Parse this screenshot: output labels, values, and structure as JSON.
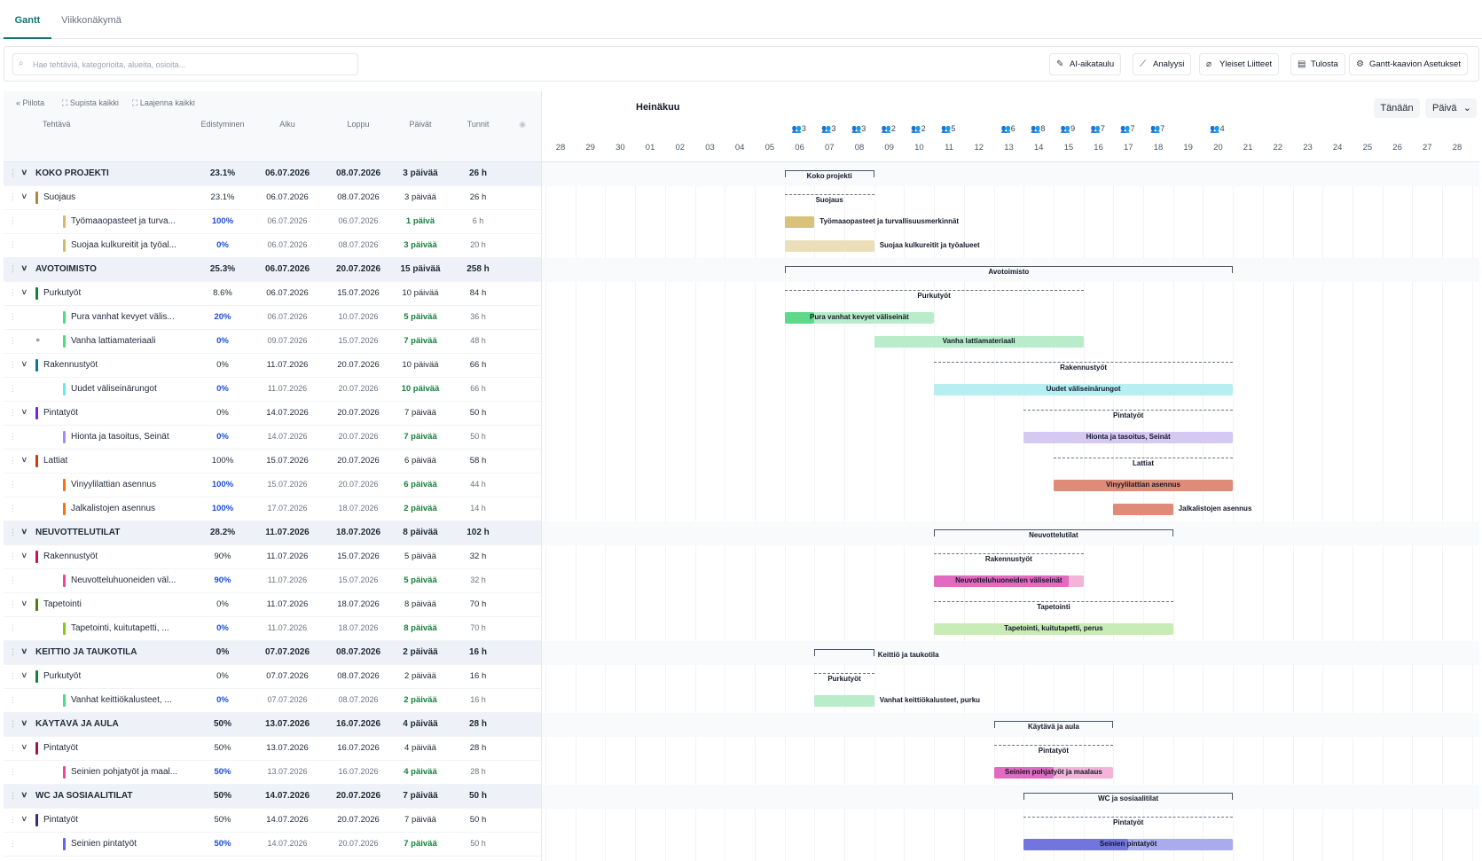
{
  "tabs": [
    {
      "label": "Gantt",
      "active": true
    },
    {
      "label": "Viikkonäkymä",
      "active": false
    }
  ],
  "search": {
    "placeholder": "Hae tehtäviä, kategorioita, alueita, osioita..."
  },
  "toolbar": {
    "ai_schedule": "AI-aikataulu",
    "analysis": "Analyysi",
    "attachments": "Yleiset Liitteet",
    "print": "Tulosta",
    "settings": "Gantt-kaavion Asetukset"
  },
  "left_actions": {
    "hide": "Piilota",
    "collapse": "Supista kaikki",
    "expand": "Laajenna kaikki"
  },
  "columns": {
    "task": "Tehtävä",
    "progress": "Edistyminen",
    "start": "Alku",
    "end": "Loppu",
    "days": "Päivät",
    "hours": "Tunnit"
  },
  "timeline": {
    "month": "Heinäkuu",
    "today": "Tänään",
    "scale": "Päivä",
    "days": [
      "28",
      "29",
      "30",
      "01",
      "02",
      "03",
      "04",
      "05",
      "06",
      "07",
      "08",
      "09",
      "10",
      "11",
      "12",
      "13",
      "14",
      "15",
      "16",
      "17",
      "18",
      "19",
      "20",
      "21",
      "22",
      "23",
      "24",
      "25",
      "26",
      "27",
      "28"
    ],
    "workload": [
      {
        "day": 8,
        "count": "3"
      },
      {
        "day": 9,
        "count": "3"
      },
      {
        "day": 10,
        "count": "3"
      },
      {
        "day": 11,
        "count": "2"
      },
      {
        "day": 12,
        "count": "2"
      },
      {
        "day": 13,
        "count": "5"
      },
      {
        "day": 15,
        "count": "6"
      },
      {
        "day": 16,
        "count": "8"
      },
      {
        "day": 17,
        "count": "9"
      },
      {
        "day": 18,
        "count": "7"
      },
      {
        "day": 19,
        "count": "7"
      },
      {
        "day": 20,
        "count": "7"
      },
      {
        "day": 22,
        "count": "4"
      }
    ]
  },
  "colors": {
    "accent": "#0f766e",
    "top_band": "#eef2f8"
  },
  "rows": [
    {
      "kind": "top",
      "name": "KOKO PROJEKTI",
      "progress": "23.1%",
      "start": "06.07.2026",
      "end": "08.07.2026",
      "days": "3 päivää",
      "hours": "26 h",
      "gantt": {
        "type": "bracket",
        "s": 8,
        "e": 10,
        "label": "Koko projekti",
        "out": false
      }
    },
    {
      "kind": "sub",
      "name": "Suojaus",
      "color": "#a78b3c",
      "progress": "23.1%",
      "start": "06.07.2026",
      "end": "08.07.2026",
      "days": "3 päivää",
      "hours": "26 h",
      "gantt": {
        "type": "dash",
        "s": 8,
        "e": 10,
        "label": "Suojaus",
        "out": false
      }
    },
    {
      "kind": "task",
      "name": "Työmaaopasteet ja turva...",
      "color": "#d4b96a",
      "progress": "100%",
      "start": "06.07.2026",
      "end": "06.07.2026",
      "days": "1 päivä",
      "hours": "6 h",
      "gantt": {
        "type": "bar",
        "s": 8,
        "e": 8,
        "label": "Työmaaopasteet ja turvallisuusmerkinnät",
        "out": true,
        "bg": "#d9c27a",
        "fill": "#d9c27a",
        "frac": 1.0
      }
    },
    {
      "kind": "task",
      "name": "Suojaa kulkureitit ja työal...",
      "color": "#d4b96a",
      "progress": "0%",
      "start": "06.07.2026",
      "end": "08.07.2026",
      "days": "3 päivää",
      "hours": "20 h",
      "gantt": {
        "type": "bar",
        "s": 8,
        "e": 10,
        "label": "Suojaa kulkureitit ja työalueet",
        "out": true,
        "bg": "#eadfb8",
        "fill": "#d9c27a",
        "frac": 0.0
      }
    },
    {
      "kind": "top",
      "name": "AVOTOIMISTO",
      "progress": "25.3%",
      "start": "06.07.2026",
      "end": "20.07.2026",
      "days": "15 päivää",
      "hours": "258 h",
      "gantt": {
        "type": "bracket",
        "s": 8,
        "e": 22,
        "label": "Avotoimisto",
        "out": false
      }
    },
    {
      "kind": "sub",
      "name": "Purkutyöt",
      "color": "#15803d",
      "progress": "8.6%",
      "start": "06.07.2026",
      "end": "15.07.2026",
      "days": "10 päivää",
      "hours": "84 h",
      "gantt": {
        "type": "dash",
        "s": 8,
        "e": 17,
        "label": "Purkutyöt",
        "out": false
      }
    },
    {
      "kind": "task",
      "name": "Pura vanhat kevyet välis...",
      "color": "#4ade80",
      "progress": "20%",
      "start": "06.07.2026",
      "end": "10.07.2026",
      "days": "5 päivää",
      "hours": "36 h",
      "gantt": {
        "type": "bar",
        "s": 8,
        "e": 12,
        "label": "Pura vanhat kevyet väliseinät",
        "out": false,
        "bg": "#b9ecca",
        "fill": "#5fd88a",
        "frac": 0.2
      }
    },
    {
      "kind": "task",
      "name": "Vanha lattiamateriaali",
      "color": "#4ade80",
      "progress": "0%",
      "start": "09.07.2026",
      "end": "15.07.2026",
      "days": "7 päivää",
      "hours": "48 h",
      "comment": true,
      "gantt": {
        "type": "bar",
        "s": 11,
        "e": 17,
        "label": "Vanha lattiamateriaali",
        "out": false,
        "bg": "#b9ecca",
        "fill": "#5fd88a",
        "frac": 0.0
      }
    },
    {
      "kind": "sub",
      "name": "Rakennustyöt",
      "color": "#0e7490",
      "progress": "0%",
      "start": "11.07.2026",
      "end": "20.07.2026",
      "days": "10 päivää",
      "hours": "66 h",
      "gantt": {
        "type": "dash",
        "s": 13,
        "e": 22,
        "label": "Rakennustyöt",
        "out": false
      }
    },
    {
      "kind": "task",
      "name": "Uudet väliseinärungot",
      "color": "#67e8f9",
      "progress": "0%",
      "start": "11.07.2026",
      "end": "20.07.2026",
      "days": "10 päivää",
      "hours": "66 h",
      "gantt": {
        "type": "bar",
        "s": 13,
        "e": 22,
        "label": "Uudet väliseinärungot",
        "out": false,
        "bg": "#b6eef2",
        "fill": "#67e8f9",
        "frac": 0.0
      }
    },
    {
      "kind": "sub",
      "name": "Pintatyöt",
      "color": "#6d28d9",
      "progress": "0%",
      "start": "14.07.2026",
      "end": "20.07.2026",
      "days": "7 päivää",
      "hours": "50 h",
      "gantt": {
        "type": "dash",
        "s": 16,
        "e": 22,
        "label": "Pintatyöt",
        "out": false
      }
    },
    {
      "kind": "task",
      "name": "Hionta ja tasoitus, Seinät",
      "color": "#a78bfa",
      "progress": "0%",
      "start": "14.07.2026",
      "end": "20.07.2026",
      "days": "7 päivää",
      "hours": "50 h",
      "gantt": {
        "type": "bar",
        "s": 16,
        "e": 22,
        "label": "Hionta ja tasoitus, Seinät",
        "out": false,
        "bg": "#d5c8f3",
        "fill": "#a78bfa",
        "frac": 0.0
      }
    },
    {
      "kind": "sub",
      "name": "Lattiat",
      "color": "#c2410c",
      "progress": "100%",
      "start": "15.07.2026",
      "end": "20.07.2026",
      "days": "6 päivää",
      "hours": "58 h",
      "gantt": {
        "type": "dash",
        "s": 17,
        "e": 22,
        "label": "Lattiat",
        "out": false
      }
    },
    {
      "kind": "task",
      "name": "Vinyylilattian asennus",
      "color": "#f97316",
      "progress": "100%",
      "start": "15.07.2026",
      "end": "20.07.2026",
      "days": "6 päivää",
      "hours": "44 h",
      "gantt": {
        "type": "bar",
        "s": 17,
        "e": 22,
        "label": "Vinyylilattian asennus",
        "out": false,
        "bg": "#e08b78",
        "fill": "#e08b78",
        "frac": 1.0
      }
    },
    {
      "kind": "task",
      "name": "Jalkalistojen asennus",
      "color": "#f97316",
      "progress": "100%",
      "start": "17.07.2026",
      "end": "18.07.2026",
      "days": "2 päivää",
      "hours": "14 h",
      "gantt": {
        "type": "bar",
        "s": 19,
        "e": 20,
        "label": "Jalkalistojen asennus",
        "out": true,
        "bg": "#e08b78",
        "fill": "#e08b78",
        "frac": 1.0
      }
    },
    {
      "kind": "top",
      "name": "NEUVOTTELUTILAT",
      "progress": "28.2%",
      "start": "11.07.2026",
      "end": "18.07.2026",
      "days": "8 päivää",
      "hours": "102 h",
      "gantt": {
        "type": "bracket",
        "s": 13,
        "e": 20,
        "label": "Neuvottelutilat",
        "out": false
      }
    },
    {
      "kind": "sub",
      "name": "Rakennustyöt",
      "color": "#be185d",
      "progress": "90%",
      "start": "11.07.2026",
      "end": "15.07.2026",
      "days": "5 päivää",
      "hours": "32 h",
      "gantt": {
        "type": "dash",
        "s": 13,
        "e": 17,
        "label": "Rakennustyöt",
        "out": false
      }
    },
    {
      "kind": "task",
      "name": "Neuvotteluhuoneiden väl...",
      "color": "#ec4899",
      "progress": "90%",
      "start": "11.07.2026",
      "end": "15.07.2026",
      "days": "5 päivää",
      "hours": "32 h",
      "gantt": {
        "type": "bar",
        "s": 13,
        "e": 17,
        "label": "Neuvotteluhuoneiden väliseinät",
        "out": false,
        "bg": "#f3b4d8",
        "fill": "#e26ac0",
        "frac": 0.9
      }
    },
    {
      "kind": "sub",
      "name": "Tapetointi",
      "color": "#4d7c0f",
      "progress": "0%",
      "start": "11.07.2026",
      "end": "18.07.2026",
      "days": "8 päivää",
      "hours": "70 h",
      "gantt": {
        "type": "dash",
        "s": 13,
        "e": 20,
        "label": "Tapetointi",
        "out": false
      }
    },
    {
      "kind": "task",
      "name": "Tapetointi, kuitutapetti, ...",
      "color": "#84cc16",
      "progress": "0%",
      "start": "11.07.2026",
      "end": "18.07.2026",
      "days": "8 päivää",
      "hours": "70 h",
      "gantt": {
        "type": "bar",
        "s": 13,
        "e": 20,
        "label": "Tapetointi, kuitutapetti, perus",
        "out": false,
        "bg": "#c9ebb5",
        "fill": "#84cc16",
        "frac": 0.0
      }
    },
    {
      "kind": "top",
      "name": "KEITTIÖ JA TAUKOTILA",
      "progress": "0%",
      "start": "07.07.2026",
      "end": "08.07.2026",
      "days": "2 päivää",
      "hours": "16 h",
      "gantt": {
        "type": "bracket",
        "s": 9,
        "e": 10,
        "label": "Keittiö ja taukotila",
        "out": true
      }
    },
    {
      "kind": "sub",
      "name": "Purkutyöt",
      "color": "#15803d",
      "progress": "0%",
      "start": "07.07.2026",
      "end": "08.07.2026",
      "days": "2 päivää",
      "hours": "16 h",
      "gantt": {
        "type": "dash",
        "s": 9,
        "e": 10,
        "label": "Purkutyöt",
        "out": false
      }
    },
    {
      "kind": "task",
      "name": "Vanhat keittiökalusteet, ...",
      "color": "#4ade80",
      "progress": "0%",
      "start": "07.07.2026",
      "end": "08.07.2026",
      "days": "2 päivää",
      "hours": "16 h",
      "gantt": {
        "type": "bar",
        "s": 9,
        "e": 10,
        "label": "Vanhat keittiökalusteet, purku",
        "out": true,
        "bg": "#b9ecca",
        "fill": "#5fd88a",
        "frac": 0.0
      }
    },
    {
      "kind": "top",
      "name": "KÄYTÄVÄ JA AULA",
      "progress": "50%",
      "start": "13.07.2026",
      "end": "16.07.2026",
      "days": "4 päivää",
      "hours": "28 h",
      "gantt": {
        "type": "bracket",
        "s": 15,
        "e": 18,
        "label": "Käytävä ja aula",
        "out": false
      }
    },
    {
      "kind": "sub",
      "name": "Pintatyöt",
      "color": "#9d174d",
      "progress": "50%",
      "start": "13.07.2026",
      "end": "16.07.2026",
      "days": "4 päivää",
      "hours": "28 h",
      "gantt": {
        "type": "dash",
        "s": 15,
        "e": 18,
        "label": "Pintatyöt",
        "out": false
      }
    },
    {
      "kind": "task",
      "name": "Seinien pohjatyöt ja maal...",
      "color": "#ec4899",
      "progress": "50%",
      "start": "13.07.2026",
      "end": "16.07.2026",
      "days": "4 päivää",
      "hours": "28 h",
      "gantt": {
        "type": "bar",
        "s": 15,
        "e": 18,
        "label": "Seinien pohjatyöt ja maalaus",
        "out": false,
        "bg": "#f3b4d8",
        "fill": "#e26ac0",
        "frac": 0.5
      }
    },
    {
      "kind": "top",
      "name": "WC JA SOSIAALITILAT",
      "progress": "50%",
      "start": "14.07.2026",
      "end": "20.07.2026",
      "days": "7 päivää",
      "hours": "50 h",
      "gantt": {
        "type": "bracket",
        "s": 16,
        "e": 22,
        "label": "WC ja sosiaalitilat",
        "out": false
      }
    },
    {
      "kind": "sub",
      "name": "Pintatyöt",
      "color": "#312e81",
      "progress": "50%",
      "start": "14.07.2026",
      "end": "20.07.2026",
      "days": "7 päivää",
      "hours": "50 h",
      "gantt": {
        "type": "dash",
        "s": 16,
        "e": 22,
        "label": "Pintatyöt",
        "out": false
      }
    },
    {
      "kind": "task",
      "name": "Seinien pintatyöt",
      "color": "#6366f1",
      "progress": "50%",
      "start": "14.07.2026",
      "end": "20.07.2026",
      "days": "7 päivää",
      "hours": "50 h",
      "gantt": {
        "type": "bar",
        "s": 16,
        "e": 22,
        "label": "Seinien pintatyöt",
        "out": false,
        "bg": "#a9acec",
        "fill": "#7275dd",
        "frac": 0.5
      }
    }
  ]
}
